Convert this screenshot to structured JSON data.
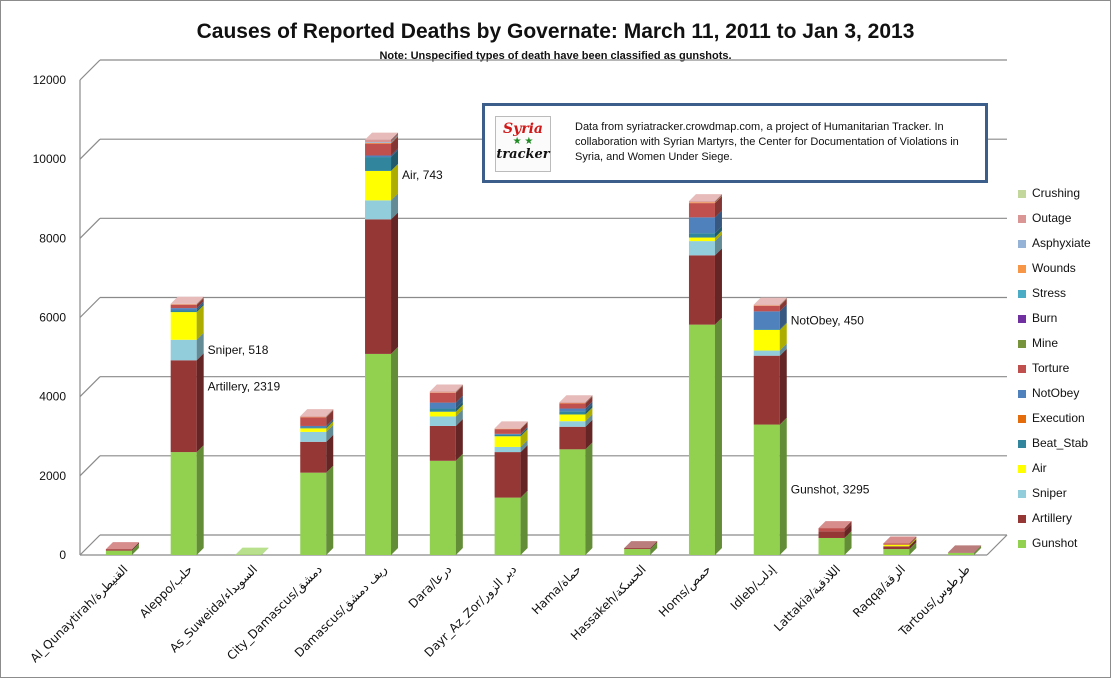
{
  "chart_data": {
    "type": "bar",
    "stacked": true,
    "three_d": true,
    "title": "Causes of Reported Deaths by Governate: March 11, 2011 to Jan 3, 2013",
    "subtitle": "Note: Unspecified types of death have been classified as gunshots.",
    "source_note": "Data from syriatracker.crowdmap.com, a project of Humanitarian Tracker. In collaboration with Syrian Martyrs, the Center for Documentation of Violations in Syria, and Women Under Siege.",
    "logo": {
      "line1": "Syria",
      "line2": "tracker"
    },
    "ylim": [
      0,
      12000
    ],
    "yticks": [
      0,
      2000,
      4000,
      6000,
      8000,
      10000,
      12000
    ],
    "legend_position": "right",
    "grid": true,
    "categories": [
      "Al_Qunaytirah/القنيطرة",
      "Aleppo/حلب",
      "As_Suweida/السويداء",
      "City_Damascus/دمشق",
      "Damascus/ريف دمشق",
      "Dara/درعا",
      "Dayr_Az_Zor/دير الزور",
      "Hama/حماة",
      "Hassakeh/الحسكة",
      "Homs/حمص",
      "Idleb/إدلب",
      "Lattakia/اللاذقية",
      "Raqqa/الرقة",
      "Tartous/طرطوس"
    ],
    "series": [
      {
        "name": "Gunshot",
        "color": "#92d050",
        "values": [
          110,
          2600,
          10,
          2080,
          5080,
          2380,
          1450,
          2670,
          150,
          5820,
          3295,
          430,
          150,
          55
        ]
      },
      {
        "name": "Artillery",
        "color": "#953735",
        "values": [
          30,
          2319,
          0,
          780,
          3400,
          880,
          1150,
          570,
          25,
          1750,
          1740,
          170,
          70,
          10
        ]
      },
      {
        "name": "Sniper",
        "color": "#92cddc",
        "values": [
          0,
          518,
          0,
          250,
          480,
          240,
          130,
          140,
          0,
          360,
          130,
          0,
          0,
          0
        ]
      },
      {
        "name": "Air",
        "color": "#ffff00",
        "values": [
          0,
          700,
          0,
          90,
          743,
          120,
          270,
          170,
          0,
          90,
          520,
          0,
          40,
          0
        ]
      },
      {
        "name": "Beat_Stab",
        "color": "#31859c",
        "values": [
          0,
          40,
          0,
          30,
          350,
          80,
          40,
          80,
          0,
          110,
          20,
          0,
          0,
          0
        ]
      },
      {
        "name": "Execution",
        "color": "#e46c0a",
        "values": [
          0,
          0,
          0,
          0,
          0,
          0,
          0,
          0,
          0,
          0,
          0,
          0,
          0,
          0
        ]
      },
      {
        "name": "NotObey",
        "color": "#4f81bd",
        "values": [
          0,
          60,
          0,
          30,
          40,
          150,
          20,
          70,
          0,
          400,
          450,
          0,
          0,
          0
        ]
      },
      {
        "name": "Torture",
        "color": "#c0504d",
        "values": [
          10,
          80,
          0,
          220,
          300,
          250,
          120,
          130,
          0,
          360,
          140,
          80,
          30,
          0
        ]
      },
      {
        "name": "Mine",
        "color": "#77933c",
        "values": [
          0,
          0,
          0,
          0,
          0,
          0,
          0,
          0,
          0,
          0,
          0,
          0,
          0,
          0
        ]
      },
      {
        "name": "Burn",
        "color": "#7030a0",
        "values": [
          0,
          0,
          0,
          0,
          0,
          0,
          0,
          0,
          0,
          0,
          0,
          0,
          0,
          0
        ]
      },
      {
        "name": "Stress",
        "color": "#4bacc6",
        "values": [
          0,
          0,
          0,
          0,
          0,
          0,
          0,
          0,
          0,
          0,
          0,
          0,
          0,
          0
        ]
      },
      {
        "name": "Wounds",
        "color": "#f79646",
        "values": [
          0,
          10,
          0,
          10,
          20,
          10,
          10,
          10,
          0,
          20,
          10,
          0,
          0,
          0
        ]
      },
      {
        "name": "Asphyxiate",
        "color": "#95b3d7",
        "values": [
          0,
          0,
          0,
          0,
          20,
          0,
          0,
          0,
          0,
          0,
          0,
          0,
          0,
          0
        ]
      },
      {
        "name": "Outage",
        "color": "#d99694",
        "values": [
          0,
          20,
          0,
          20,
          60,
          20,
          10,
          20,
          0,
          30,
          20,
          0,
          0,
          0
        ]
      },
      {
        "name": "Crushing",
        "color": "#c3d69b",
        "values": [
          0,
          0,
          0,
          0,
          0,
          0,
          0,
          0,
          0,
          0,
          0,
          0,
          0,
          0
        ]
      }
    ],
    "annotations": [
      {
        "text": "Sniper, 518",
        "category": "Aleppo/حلب",
        "series": "Sniper"
      },
      {
        "text": "Artillery, 2319",
        "category": "Aleppo/حلب",
        "series": "Artillery"
      },
      {
        "text": "Air, 743",
        "category": "Damascus/ريف دمشق",
        "series": "Air"
      },
      {
        "text": "NotObey, 450",
        "category": "Idleb/إدلب",
        "series": "NotObey"
      },
      {
        "text": "Gunshot, 3295",
        "category": "Idleb/إدلب",
        "series": "Gunshot"
      }
    ]
  }
}
